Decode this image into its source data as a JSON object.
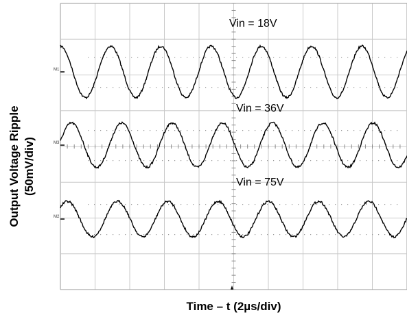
{
  "chart_data": {
    "type": "line",
    "title": "",
    "xlabel": "Time – t (2µs/div)",
    "ylabel_line1": "Output Voltage Ripple",
    "ylabel_line2": "(50mV/div)",
    "x_divisions": 10,
    "y_divisions": 8,
    "x_per_div_us": 2,
    "y_per_div_mV": 50,
    "xlim_us": [
      0,
      20
    ],
    "grid": true,
    "series": [
      {
        "name": "Vin = 18V",
        "marker": "M1",
        "color": "#000000",
        "amplitude_mV": 58,
        "period_us": 2.9,
        "phase_deg": 90
      },
      {
        "name": "Vin = 36V",
        "marker": "M3",
        "color": "#000000",
        "amplitude_mV": 50,
        "period_us": 2.9,
        "phase_deg": 10
      },
      {
        "name": "Vin = 75V",
        "marker": "M2",
        "color": "#000000",
        "amplitude_mV": 40,
        "period_us": 2.9,
        "phase_deg": 40
      }
    ]
  }
}
